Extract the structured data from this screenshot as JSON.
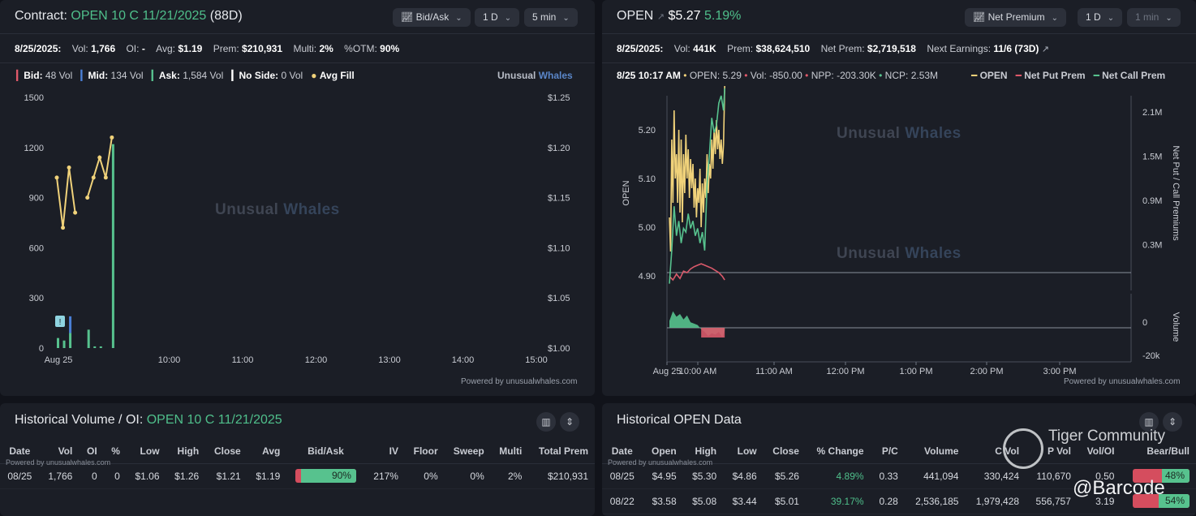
{
  "left": {
    "title_prefix": "Contract:",
    "contract": "OPEN 10 C 11/21/2025",
    "dte": "(88D)",
    "buttons": {
      "mode": "Bid/Ask",
      "range": "1 D",
      "interval": "5 min"
    },
    "stats": {
      "date": "8/25/2025:",
      "vol_label": "Vol:",
      "vol": "1,766",
      "oi_label": "OI:",
      "oi": "-",
      "avg_label": "Avg:",
      "avg": "$1.19",
      "prem_label": "Prem:",
      "prem": "$210,931",
      "multi_label": "Multi:",
      "multi": "2%",
      "otm_label": "%OTM:",
      "otm": "90%"
    },
    "legend": {
      "bid_label": "Bid:",
      "bid": "48 Vol",
      "mid_label": "Mid:",
      "mid": "134 Vol",
      "ask_label": "Ask:",
      "ask": "1,584 Vol",
      "noside_label": "No Side:",
      "noside": "0 Vol",
      "avgfill": "Avg Fill",
      "brand1": "Unusual",
      "brand2": "Whales"
    },
    "watermark1": "Unusual",
    "watermark2": "Whales",
    "powered": "Powered by unusualwhales.com"
  },
  "right": {
    "ticker": "OPEN",
    "price": "$5.27",
    "change": "5.19%",
    "buttons": {
      "mode": "Net Premium",
      "range": "1 D",
      "interval": "1 min"
    },
    "stats": {
      "date": "8/25/2025:",
      "vol_label": "Vol:",
      "vol": "441K",
      "prem_label": "Prem:",
      "prem": "$38,624,510",
      "netprem_label": "Net Prem:",
      "netprem": "$2,719,518",
      "earn_label": "Next Earnings:",
      "earn": "11/6 (73D)"
    },
    "legend": {
      "time": "8/25 10:17 AM",
      "open_label": "OPEN:",
      "open": "5.29",
      "vol_label": "Vol:",
      "vol": "-850.00",
      "npp_label": "NPP:",
      "npp": "-203.30K",
      "ncp_label": "NCP:",
      "ncp": "2.53M",
      "s1": "OPEN",
      "s2": "Net Put Prem",
      "s3": "Net Call Prem"
    },
    "watermark1": "Unusual",
    "watermark2": "Whales",
    "powered": "Powered by unusualwhales.com"
  },
  "colors": {
    "ask": "#57c28e",
    "bid": "#e0596a",
    "mid": "#4a7fd6",
    "avg": "#f0d27a",
    "call": "#57c28e",
    "put": "#d9596a"
  },
  "chart_data": [
    {
      "type": "bar",
      "title": "",
      "x_ticks": [
        "Aug 25",
        "10:00",
        "11:00",
        "12:00",
        "13:00",
        "14:00",
        "15:00"
      ],
      "y_ticks": [
        "0",
        "300",
        "600",
        "900",
        "1200",
        "1500"
      ],
      "y2_ticks": [
        "$1.00",
        "$1.05",
        "$1.10",
        "$1.15",
        "$1.20",
        "$1.25"
      ],
      "ylim": [
        0,
        1500
      ],
      "y2lim": [
        1.0,
        1.25
      ],
      "x_minutes": [
        0,
        60,
        120,
        180,
        240,
        300,
        360
      ],
      "bars": [
        {
          "t": 0,
          "ask": 60,
          "mid": 0,
          "bid": 0
        },
        {
          "t": 5,
          "ask": 45,
          "mid": 0,
          "bid": 0
        },
        {
          "t": 10,
          "ask": 90,
          "mid": 100,
          "bid": 0
        },
        {
          "t": 25,
          "ask": 110,
          "mid": 0,
          "bid": 0
        },
        {
          "t": 30,
          "ask": 10,
          "mid": 0,
          "bid": 0
        },
        {
          "t": 35,
          "ask": 10,
          "mid": 0,
          "bid": 0
        },
        {
          "t": 45,
          "ask": 1220,
          "mid": 0,
          "bid": 0
        }
      ],
      "avg_fill": [
        {
          "t": 0,
          "v": 1.17
        },
        {
          "t": 5,
          "v": 1.12
        },
        {
          "t": 10,
          "v": 1.18
        },
        {
          "t": 15,
          "v": 1.135
        },
        {
          "t": 25,
          "v": 1.15
        },
        {
          "t": 30,
          "v": 1.17
        },
        {
          "t": 35,
          "v": 1.19
        },
        {
          "t": 40,
          "v": 1.17
        },
        {
          "t": 45,
          "v": 1.21
        }
      ]
    },
    {
      "type": "line",
      "title": "",
      "ylabel": "OPEN",
      "y2label": "Net Put / Call Premiums",
      "y3label": "Volume",
      "x_ticks": [
        "Aug 25",
        "10:00 AM",
        "11:00 AM",
        "12:00 PM",
        "1:00 PM",
        "2:00 PM",
        "3:00 PM"
      ],
      "y_ticks": [
        "4.90",
        "5.00",
        "5.10",
        "5.20"
      ],
      "y2_ticks": [
        "0.3M",
        "0.9M",
        "1.5M",
        "2.1M"
      ],
      "y3_ticks": [
        "0",
        "-20k"
      ],
      "ylim": [
        4.87,
        5.27
      ],
      "y2lim": [
        -0.3,
        2.5
      ],
      "series": [
        {
          "name": "OPEN",
          "x": [
            0,
            1,
            2,
            3,
            4,
            5,
            6,
            7,
            8,
            9,
            10,
            11,
            12,
            13,
            14,
            15,
            16,
            17,
            18,
            19,
            20,
            21,
            22,
            23,
            24,
            25,
            26,
            27,
            28,
            29,
            30,
            31,
            32,
            33,
            34,
            35,
            36,
            37,
            38,
            39,
            40,
            41,
            42,
            43,
            44,
            45,
            46,
            47
          ],
          "values": [
            5.02,
            4.95,
            5.18,
            5.05,
            5.24,
            5.1,
            5.15,
            5.05,
            5.2,
            5.03,
            5.18,
            5.01,
            5.15,
            5.07,
            5.19,
            5.1,
            5.16,
            5.06,
            5.14,
            5.08,
            5.13,
            5.04,
            5.1,
            5.02,
            5.08,
            5.05,
            5.12,
            5.0,
            5.09,
            5.03,
            5.1,
            5.06,
            5.15,
            5.07,
            5.13,
            5.1,
            5.18,
            5.12,
            5.2,
            5.15,
            5.22,
            5.16,
            5.2,
            5.14,
            5.18,
            5.13,
            5.17,
            5.29
          ]
        },
        {
          "name": "Net Put Prem",
          "x": [
            0,
            3,
            6,
            9,
            12,
            15,
            18,
            21,
            24,
            27,
            30,
            33,
            36,
            39,
            42,
            45,
            47
          ],
          "values": [
            -0.05,
            -0.1,
            -0.02,
            -0.08,
            0.02,
            0.0,
            0.05,
            0.08,
            0.1,
            0.12,
            0.1,
            0.08,
            0.06,
            0.03,
            0.0,
            -0.05,
            -0.1
          ]
        },
        {
          "name": "Net Call Prem",
          "x": [
            0,
            2,
            4,
            6,
            8,
            10,
            12,
            14,
            16,
            18,
            20,
            22,
            24,
            26,
            28,
            30,
            32,
            34,
            36,
            38,
            40,
            42,
            44,
            46,
            47
          ],
          "values": [
            -0.15,
            0.3,
            0.9,
            0.5,
            0.7,
            0.4,
            0.6,
            0.55,
            0.8,
            0.6,
            0.7,
            0.5,
            0.6,
            0.4,
            0.55,
            0.3,
            1.2,
            1.6,
            2.1,
            1.9,
            2.0,
            2.3,
            2.4,
            2.2,
            2.5
          ]
        },
        {
          "name": "Volume",
          "x": [
            0,
            3,
            6,
            9,
            12,
            15,
            18,
            21,
            24,
            27,
            30,
            33,
            36,
            39,
            42,
            45,
            47
          ],
          "values": [
            5000,
            12000,
            8000,
            10000,
            6000,
            9000,
            4000,
            3000,
            2000,
            -1000,
            -3000,
            -6000,
            -4000,
            -5000,
            -3000,
            -7000,
            -2000
          ]
        }
      ]
    }
  ],
  "table_left": {
    "title_prefix": "Historical Volume / OI:",
    "contract": "OPEN 10 C 11/21/2025",
    "powered": "Powered by unusualwhales.com",
    "headers": [
      "Date",
      "Vol",
      "OI",
      "%",
      "Low",
      "High",
      "Close",
      "Avg",
      "Bid/Ask",
      "IV",
      "Floor",
      "Sweep",
      "Multi",
      "Total Prem"
    ],
    "rows": [
      {
        "date": "08/25",
        "vol": "1,766",
        "oi": "0",
        "pct": "0",
        "low": "$1.06",
        "high": "$1.26",
        "close": "$1.21",
        "avg": "$1.19",
        "ba": "90%",
        "ba_frac": 0.9,
        "iv": "217%",
        "floor": "0%",
        "sweep": "0%",
        "multi": "2%",
        "prem": "$210,931"
      }
    ]
  },
  "table_right": {
    "title": "Historical OPEN Data",
    "powered": "Powered by unusualwhales.com",
    "headers": [
      "Date",
      "Open",
      "High",
      "Low",
      "Close",
      "% Change",
      "P/C",
      "Volume",
      "C Vol",
      "P Vol",
      "Vol/OI",
      "Bear/Bull"
    ],
    "rows": [
      {
        "date": "08/25",
        "open": "$4.95",
        "high": "$5.30",
        "low": "$4.86",
        "close": "$5.26",
        "chg": "4.89%",
        "pc": "0.33",
        "vol": "441,094",
        "cvol": "330,424",
        "pvol": "110,670",
        "voloi": "0.50",
        "bb": "48%",
        "bb_frac": 0.48
      },
      {
        "date": "08/22",
        "open": "$3.58",
        "high": "$5.08",
        "low": "$3.44",
        "close": "$5.01",
        "chg": "39.17%",
        "pc": "0.28",
        "vol": "2,536,185",
        "cvol": "1,979,428",
        "pvol": "556,757",
        "voloi": "3.19",
        "bb": "54%",
        "bb_frac": 0.54
      }
    ]
  },
  "overlay": {
    "community": "Tiger Community",
    "handle": "@Barcode"
  }
}
